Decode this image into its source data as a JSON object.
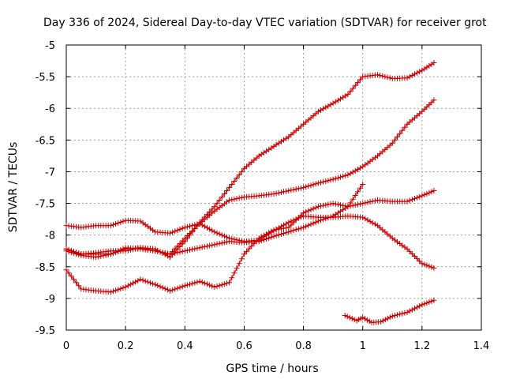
{
  "chart_data": {
    "type": "scatter",
    "title": "Day 336 of 2024, Sidereal Day-to-day VTEC variation (SDTVAR) for receiver grot",
    "xlabel": "GPS time / hours",
    "ylabel": "SDTVAR / TECUs",
    "xlim": [
      0,
      1.4
    ],
    "ylim": [
      -9.5,
      -5
    ],
    "x_ticks": [
      "0",
      "0.2",
      "0.4",
      "0.6",
      "0.8",
      "1",
      "1.2",
      "1.4"
    ],
    "y_ticks": [
      "-5",
      "-5.5",
      "-6",
      "-6.5",
      "-7",
      "-7.5",
      "-8",
      "-8.5",
      "-9",
      "-9.5"
    ],
    "grid": true,
    "marker": "plus",
    "color": "#cc0000",
    "series": [
      {
        "points": [
          [
            0,
            -7.85
          ],
          [
            0.05,
            -7.88
          ],
          [
            0.1,
            -7.85
          ],
          [
            0.15,
            -7.85
          ],
          [
            0.2,
            -7.77
          ],
          [
            0.25,
            -7.78
          ],
          [
            0.3,
            -7.95
          ],
          [
            0.35,
            -7.97
          ],
          [
            0.4,
            -7.88
          ],
          [
            0.45,
            -7.82
          ],
          [
            0.5,
            -7.95
          ],
          [
            0.55,
            -8.05
          ],
          [
            0.6,
            -8.1
          ],
          [
            0.65,
            -8.08
          ],
          [
            0.7,
            -7.93
          ],
          [
            0.75,
            -7.8
          ],
          [
            0.8,
            -7.7
          ],
          [
            0.85,
            -7.72
          ],
          [
            0.9,
            -7.72
          ],
          [
            0.95,
            -7.7
          ],
          [
            1.0,
            -7.72
          ],
          [
            1.05,
            -7.85
          ],
          [
            1.1,
            -8.05
          ],
          [
            1.15,
            -8.22
          ],
          [
            1.2,
            -8.45
          ],
          [
            1.24,
            -8.52
          ]
        ]
      },
      {
        "points": [
          [
            0,
            -8.22
          ],
          [
            0.05,
            -8.3
          ],
          [
            0.1,
            -8.3
          ],
          [
            0.15,
            -8.3
          ],
          [
            0.2,
            -8.2
          ],
          [
            0.25,
            -8.22
          ],
          [
            0.3,
            -8.25
          ],
          [
            0.35,
            -8.3
          ],
          [
            0.4,
            -8.25
          ],
          [
            0.45,
            -8.2
          ],
          [
            0.5,
            -8.15
          ],
          [
            0.55,
            -8.1
          ],
          [
            0.6,
            -8.12
          ],
          [
            0.65,
            -8.1
          ],
          [
            0.7,
            -8.02
          ],
          [
            0.75,
            -7.95
          ],
          [
            0.8,
            -7.88
          ],
          [
            0.85,
            -7.78
          ],
          [
            0.9,
            -7.7
          ],
          [
            0.95,
            -7.55
          ],
          [
            1.0,
            -7.2
          ]
        ]
      },
      {
        "points": [
          [
            0,
            -8.25
          ],
          [
            0.05,
            -8.32
          ],
          [
            0.1,
            -8.35
          ],
          [
            0.15,
            -8.3
          ],
          [
            0.2,
            -8.22
          ],
          [
            0.25,
            -8.2
          ],
          [
            0.3,
            -8.25
          ],
          [
            0.35,
            -8.3
          ],
          [
            0.4,
            -8.05
          ],
          [
            0.45,
            -7.82
          ],
          [
            0.5,
            -7.62
          ],
          [
            0.55,
            -7.45
          ],
          [
            0.6,
            -7.4
          ],
          [
            0.65,
            -7.38
          ],
          [
            0.7,
            -7.35
          ],
          [
            0.75,
            -7.3
          ],
          [
            0.8,
            -7.25
          ],
          [
            0.85,
            -7.18
          ],
          [
            0.9,
            -7.12
          ],
          [
            0.95,
            -7.05
          ],
          [
            1.0,
            -6.92
          ],
          [
            1.05,
            -6.75
          ],
          [
            1.1,
            -6.55
          ],
          [
            1.15,
            -6.25
          ],
          [
            1.2,
            -6.05
          ],
          [
            1.24,
            -5.87
          ]
        ]
      },
      {
        "points": [
          [
            0,
            -8.22
          ],
          [
            0.05,
            -8.3
          ],
          [
            0.1,
            -8.28
          ],
          [
            0.15,
            -8.25
          ],
          [
            0.2,
            -8.25
          ],
          [
            0.25,
            -8.2
          ],
          [
            0.3,
            -8.22
          ],
          [
            0.35,
            -8.35
          ],
          [
            0.4,
            -8.1
          ],
          [
            0.45,
            -7.8
          ],
          [
            0.5,
            -7.55
          ],
          [
            0.55,
            -7.25
          ],
          [
            0.6,
            -6.95
          ],
          [
            0.65,
            -6.75
          ],
          [
            0.7,
            -6.6
          ],
          [
            0.75,
            -6.45
          ],
          [
            0.8,
            -6.25
          ],
          [
            0.85,
            -6.05
          ],
          [
            0.9,
            -5.92
          ],
          [
            0.95,
            -5.78
          ],
          [
            1.0,
            -5.5
          ],
          [
            1.05,
            -5.47
          ],
          [
            1.1,
            -5.53
          ],
          [
            1.15,
            -5.52
          ],
          [
            1.2,
            -5.4
          ],
          [
            1.24,
            -5.28
          ]
        ]
      },
      {
        "points": [
          [
            0,
            -8.55
          ],
          [
            0.05,
            -8.85
          ],
          [
            0.1,
            -8.88
          ],
          [
            0.15,
            -8.9
          ],
          [
            0.2,
            -8.82
          ],
          [
            0.25,
            -8.7
          ],
          [
            0.3,
            -8.78
          ],
          [
            0.35,
            -8.88
          ],
          [
            0.4,
            -8.8
          ],
          [
            0.45,
            -8.73
          ],
          [
            0.5,
            -8.82
          ],
          [
            0.55,
            -8.75
          ],
          [
            0.6,
            -8.3
          ],
          [
            0.65,
            -8.05
          ],
          [
            0.7,
            -7.92
          ],
          [
            0.75,
            -7.88
          ],
          [
            0.8,
            -7.65
          ],
          [
            0.85,
            -7.55
          ],
          [
            0.9,
            -7.5
          ],
          [
            0.95,
            -7.55
          ],
          [
            1.0,
            -7.5
          ],
          [
            1.05,
            -7.45
          ],
          [
            1.1,
            -7.47
          ],
          [
            1.15,
            -7.47
          ],
          [
            1.2,
            -7.38
          ],
          [
            1.24,
            -7.3
          ]
        ]
      },
      {
        "points": [
          [
            0.94,
            -9.27
          ],
          [
            0.98,
            -9.35
          ],
          [
            1.0,
            -9.3
          ],
          [
            1.03,
            -9.38
          ],
          [
            1.06,
            -9.37
          ],
          [
            1.1,
            -9.28
          ],
          [
            1.15,
            -9.22
          ],
          [
            1.2,
            -9.1
          ],
          [
            1.24,
            -9.03
          ]
        ]
      }
    ]
  }
}
